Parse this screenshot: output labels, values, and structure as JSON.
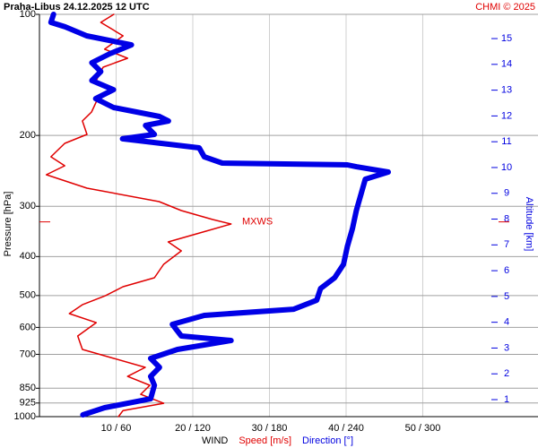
{
  "chart_data": {
    "type": "line",
    "title": "Praha-Libus   24.12.2025 12 UTC",
    "credit": "CHMI © 2025",
    "ylabel": "Pressure [hPa]",
    "y2label": "Altitude [km]",
    "xlabels": [
      {
        "text": "WIND",
        "color": "#000000"
      },
      {
        "text": "Speed [m/s]",
        "color": "#e00000"
      },
      {
        "text": "Direction [°]",
        "color": "#0000e0"
      }
    ],
    "ylog": true,
    "ylim": [
      1000,
      100
    ],
    "yticks": [
      100,
      200,
      300,
      400,
      500,
      600,
      700,
      850,
      925,
      1000
    ],
    "y2lim": [
      0.34,
      15.94
    ],
    "y2ticks": [
      1,
      2,
      3,
      4,
      5,
      6,
      7,
      8,
      9,
      10,
      11,
      12,
      13,
      14,
      15
    ],
    "xlim": [
      0,
      59.3
    ],
    "x2lim": [
      0,
      355.8
    ],
    "xticks": [
      {
        "value": 10,
        "label": "10 / 60"
      },
      {
        "value": 20,
        "label": "20 / 120"
      },
      {
        "value": 30,
        "label": "30 / 180"
      },
      {
        "value": 40,
        "label": "40 / 240"
      },
      {
        "value": 50,
        "label": "50 / 300"
      }
    ],
    "grid": true,
    "annotation": {
      "text": "MXWS",
      "pressure": 328,
      "color": "#e00000"
    },
    "series": [
      {
        "name": "Speed [m/s]",
        "color": "#e00000",
        "axis": "x",
        "y": [
          100,
          104.7,
          113.1,
          122.1,
          128.6,
          135.3,
          146.1,
          153.9,
          162.0,
          174.9,
          184.1,
          198.8,
          209.3,
          226.0,
          237.9,
          250.4,
          270.5,
          292.1,
          307.4,
          323.6,
          332.1,
          349.5,
          367.9,
          387.3,
          418.2,
          451.6,
          475.5,
          500.6,
          526.9,
          554.6,
          583.8,
          630.4,
          680.8,
          716.6,
          754.4,
          794.2,
          835.6,
          879.9,
          926.4,
          965.7,
          1000
        ],
        "values": [
          9.7,
          8,
          10.9,
          8.5,
          11.5,
          8.3,
          7.4,
          9.1,
          7.6,
          6.8,
          5.6,
          6.2,
          3.3,
          1.5,
          3.3,
          0.9,
          6.2,
          15.6,
          18.5,
          22.6,
          25,
          20.9,
          16.8,
          18.5,
          16.2,
          15,
          10.9,
          8.6,
          5.6,
          3.9,
          7.4,
          5,
          5.6,
          9.7,
          13.8,
          11.5,
          14.4,
          13.2,
          16.2,
          10.9,
          10.3
        ]
      },
      {
        "name": "Direction [°]",
        "color": "#0000e6",
        "axis": "x2",
        "y": [
          100,
          104.7,
          107.4,
          113.1,
          119.1,
          125.3,
          131.9,
          138.8,
          146.1,
          153.9,
          162.0,
          170.5,
          179.4,
          184.1,
          188.9,
          198.8,
          203.9,
          214.7,
          226.0,
          234.3,
          236.7,
          239.2,
          246.6,
          256.9,
          277.5,
          307.4,
          340.7,
          377.5,
          418.2,
          451.6,
          480.4,
          513.6,
          540.6,
          560.3,
          589.8,
          630.4,
          646.8,
          680.8,
          716.6,
          754.4,
          794.2,
          835.6,
          902.9,
          950.0,
          989.7
        ],
        "values": [
          11,
          9,
          20,
          37,
          72,
          55,
          41,
          48,
          41,
          58,
          44,
          58,
          94,
          101,
          83,
          90,
          65,
          125,
          129,
          143,
          241,
          248,
          273,
          255,
          252,
          248,
          245,
          241,
          238,
          231,
          220,
          217,
          199,
          129,
          104,
          111,
          150,
          108,
          87,
          94,
          87,
          90,
          87,
          51,
          34
        ]
      }
    ]
  }
}
